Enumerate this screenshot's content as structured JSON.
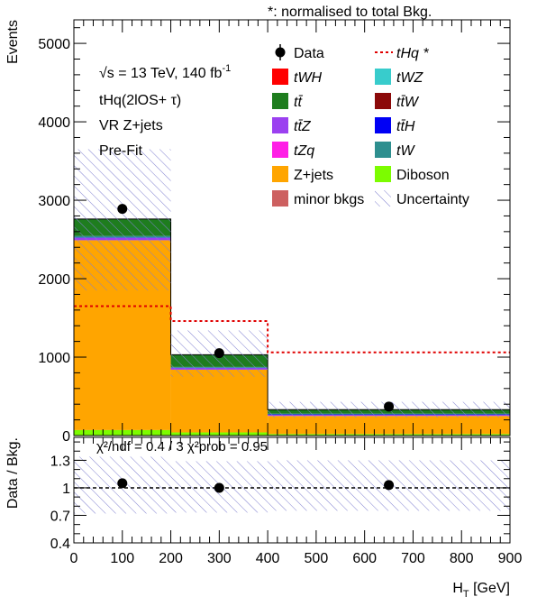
{
  "header": {
    "norm_note": "*: normalised to total Bkg.",
    "energy_label": "√s = 13 TeV, 140 fb",
    "energy_exp": "-1",
    "channel_label": "tHq(2lOS+ τ)",
    "region_label": "VR Z+jets",
    "stage_label": "Pre-Fit",
    "ratio_stats": "χ²/ndf = 0.4 / 3    χ²prob = 0.95"
  },
  "colors": {
    "zjets": "#ffa500",
    "ttbar": "#1e7d1e",
    "ttZ": "#9b40f0",
    "ttW": "#8b0a0a",
    "ttH": "#0000f5",
    "tW": "#2e8f8f",
    "tWH": "#ff0000",
    "tWZ": "#38cccc",
    "tZq": "#ff1ee6",
    "diboson": "#7cfc00",
    "minor": "#cd6060",
    "signal": "#e00000",
    "uncertainty": "#8080d0"
  },
  "chart_data": {
    "type": "bar",
    "stacked": true,
    "xlabel": "H",
    "xlabel_sub": "T",
    "xlabel_unit": " [GeV]",
    "ylabel": "Events",
    "ratio_ylabel": "Data / Bkg.",
    "xlim": [
      0,
      900
    ],
    "ylim": [
      0,
      5300
    ],
    "ratio_ylim": [
      0.4,
      1.55
    ],
    "x_ticks": [
      "0",
      "100",
      "200",
      "300",
      "400",
      "500",
      "600",
      "700",
      "800",
      "900"
    ],
    "y_ticks": [
      "0",
      "1000",
      "2000",
      "3000",
      "4000",
      "5000"
    ],
    "ratio_y_ticks": [
      "0.4",
      "0.7",
      "1",
      "1.3"
    ],
    "bins": [
      [
        0,
        200
      ],
      [
        200,
        400
      ],
      [
        400,
        900
      ]
    ],
    "series": [
      {
        "key": "diboson",
        "values": [
          70,
          40,
          20
        ]
      },
      {
        "key": "zjets",
        "values": [
          2420,
          800,
          230
        ]
      },
      {
        "key": "ttZ",
        "values": [
          30,
          20,
          15
        ]
      },
      {
        "key": "ttH",
        "values": [
          5,
          5,
          5
        ]
      },
      {
        "key": "tW",
        "values": [
          20,
          10,
          10
        ]
      },
      {
        "key": "ttbar",
        "values": [
          215,
          155,
          50
        ]
      }
    ],
    "signal": {
      "values": [
        1650,
        1460,
        1060
      ]
    },
    "uncertainty_band": {
      "low": [
        1850,
        750,
        230
      ],
      "high": [
        3650,
        1340,
        430
      ]
    },
    "data": {
      "x": [
        100,
        300,
        650
      ],
      "y": [
        2890,
        1050,
        370
      ]
    },
    "ratio": {
      "points": [
        1.05,
        1.0,
        1.03
      ],
      "band_low": [
        0.72,
        0.73,
        0.75
      ],
      "band_high": [
        1.34,
        1.29,
        1.3
      ],
      "reference": 1.0
    },
    "legend": {
      "left": [
        {
          "label": "Data",
          "kind": "marker"
        },
        {
          "label": "tWH",
          "kind": "box",
          "color_key": "tWH"
        },
        {
          "label": "tt̄",
          "kind": "box",
          "color_key": "ttbar"
        },
        {
          "label": "tt̄Z",
          "kind": "box",
          "color_key": "ttZ"
        },
        {
          "label": "tZq",
          "kind": "box",
          "color_key": "tZq"
        },
        {
          "label": "Z+jets",
          "kind": "box",
          "color_key": "zjets"
        },
        {
          "label": "minor bkgs",
          "kind": "box",
          "color_key": "minor"
        }
      ],
      "right": [
        {
          "label": "tHq *",
          "kind": "dashed",
          "color_key": "signal"
        },
        {
          "label": "tWZ",
          "kind": "box",
          "color_key": "tWZ"
        },
        {
          "label": "tt̄W",
          "kind": "box",
          "color_key": "ttW"
        },
        {
          "label": "tt̄H",
          "kind": "box",
          "color_key": "ttH"
        },
        {
          "label": "tW",
          "kind": "box",
          "color_key": "tW"
        },
        {
          "label": "Diboson",
          "kind": "box",
          "color_key": "diboson"
        },
        {
          "label": "Uncertainty",
          "kind": "hatch"
        }
      ]
    }
  }
}
